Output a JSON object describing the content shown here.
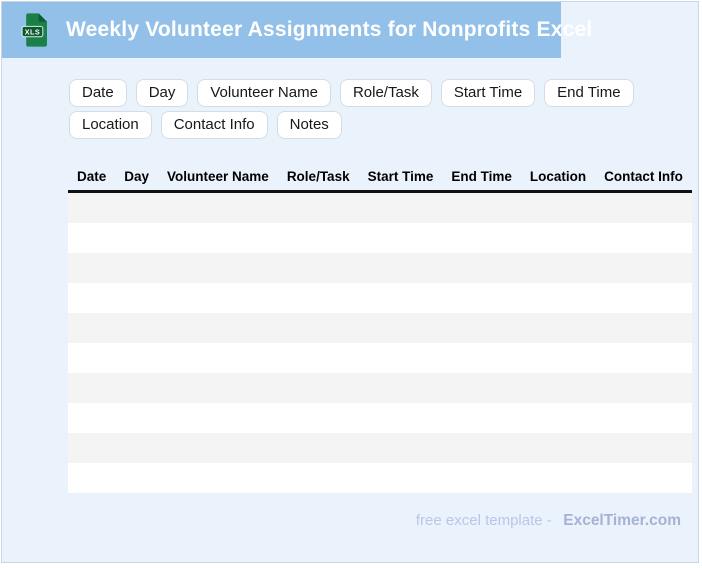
{
  "header": {
    "title": "Weekly Volunteer Assignments for Nonprofits Excel",
    "icon_label": "XLS"
  },
  "chips": [
    "Date",
    "Day",
    "Volunteer Name",
    "Role/Task",
    "Start Time",
    "End Time",
    "Location",
    "Contact Info",
    "Notes"
  ],
  "table": {
    "columns": [
      "Date",
      "Day",
      "Volunteer Name",
      "Role/Task",
      "Start Time",
      "End Time",
      "Location",
      "Contact Info"
    ],
    "empty_row_count": 10
  },
  "footer": {
    "label": "free excel template -",
    "brand": "ExcelTimer.com"
  },
  "colors": {
    "banner": "#93c0e8",
    "page_bg": "#eaf3fc",
    "card_border": "#ccd6e3",
    "chip_border": "#d6dce6",
    "stripe": "#f4f4f5",
    "header_rule": "#111111",
    "footer_label": "#bac5ec",
    "footer_brand": "#a6b1d6",
    "title_text": "#ffffff",
    "icon_green": "#1b8047",
    "icon_dark_green": "#0d5c31"
  }
}
